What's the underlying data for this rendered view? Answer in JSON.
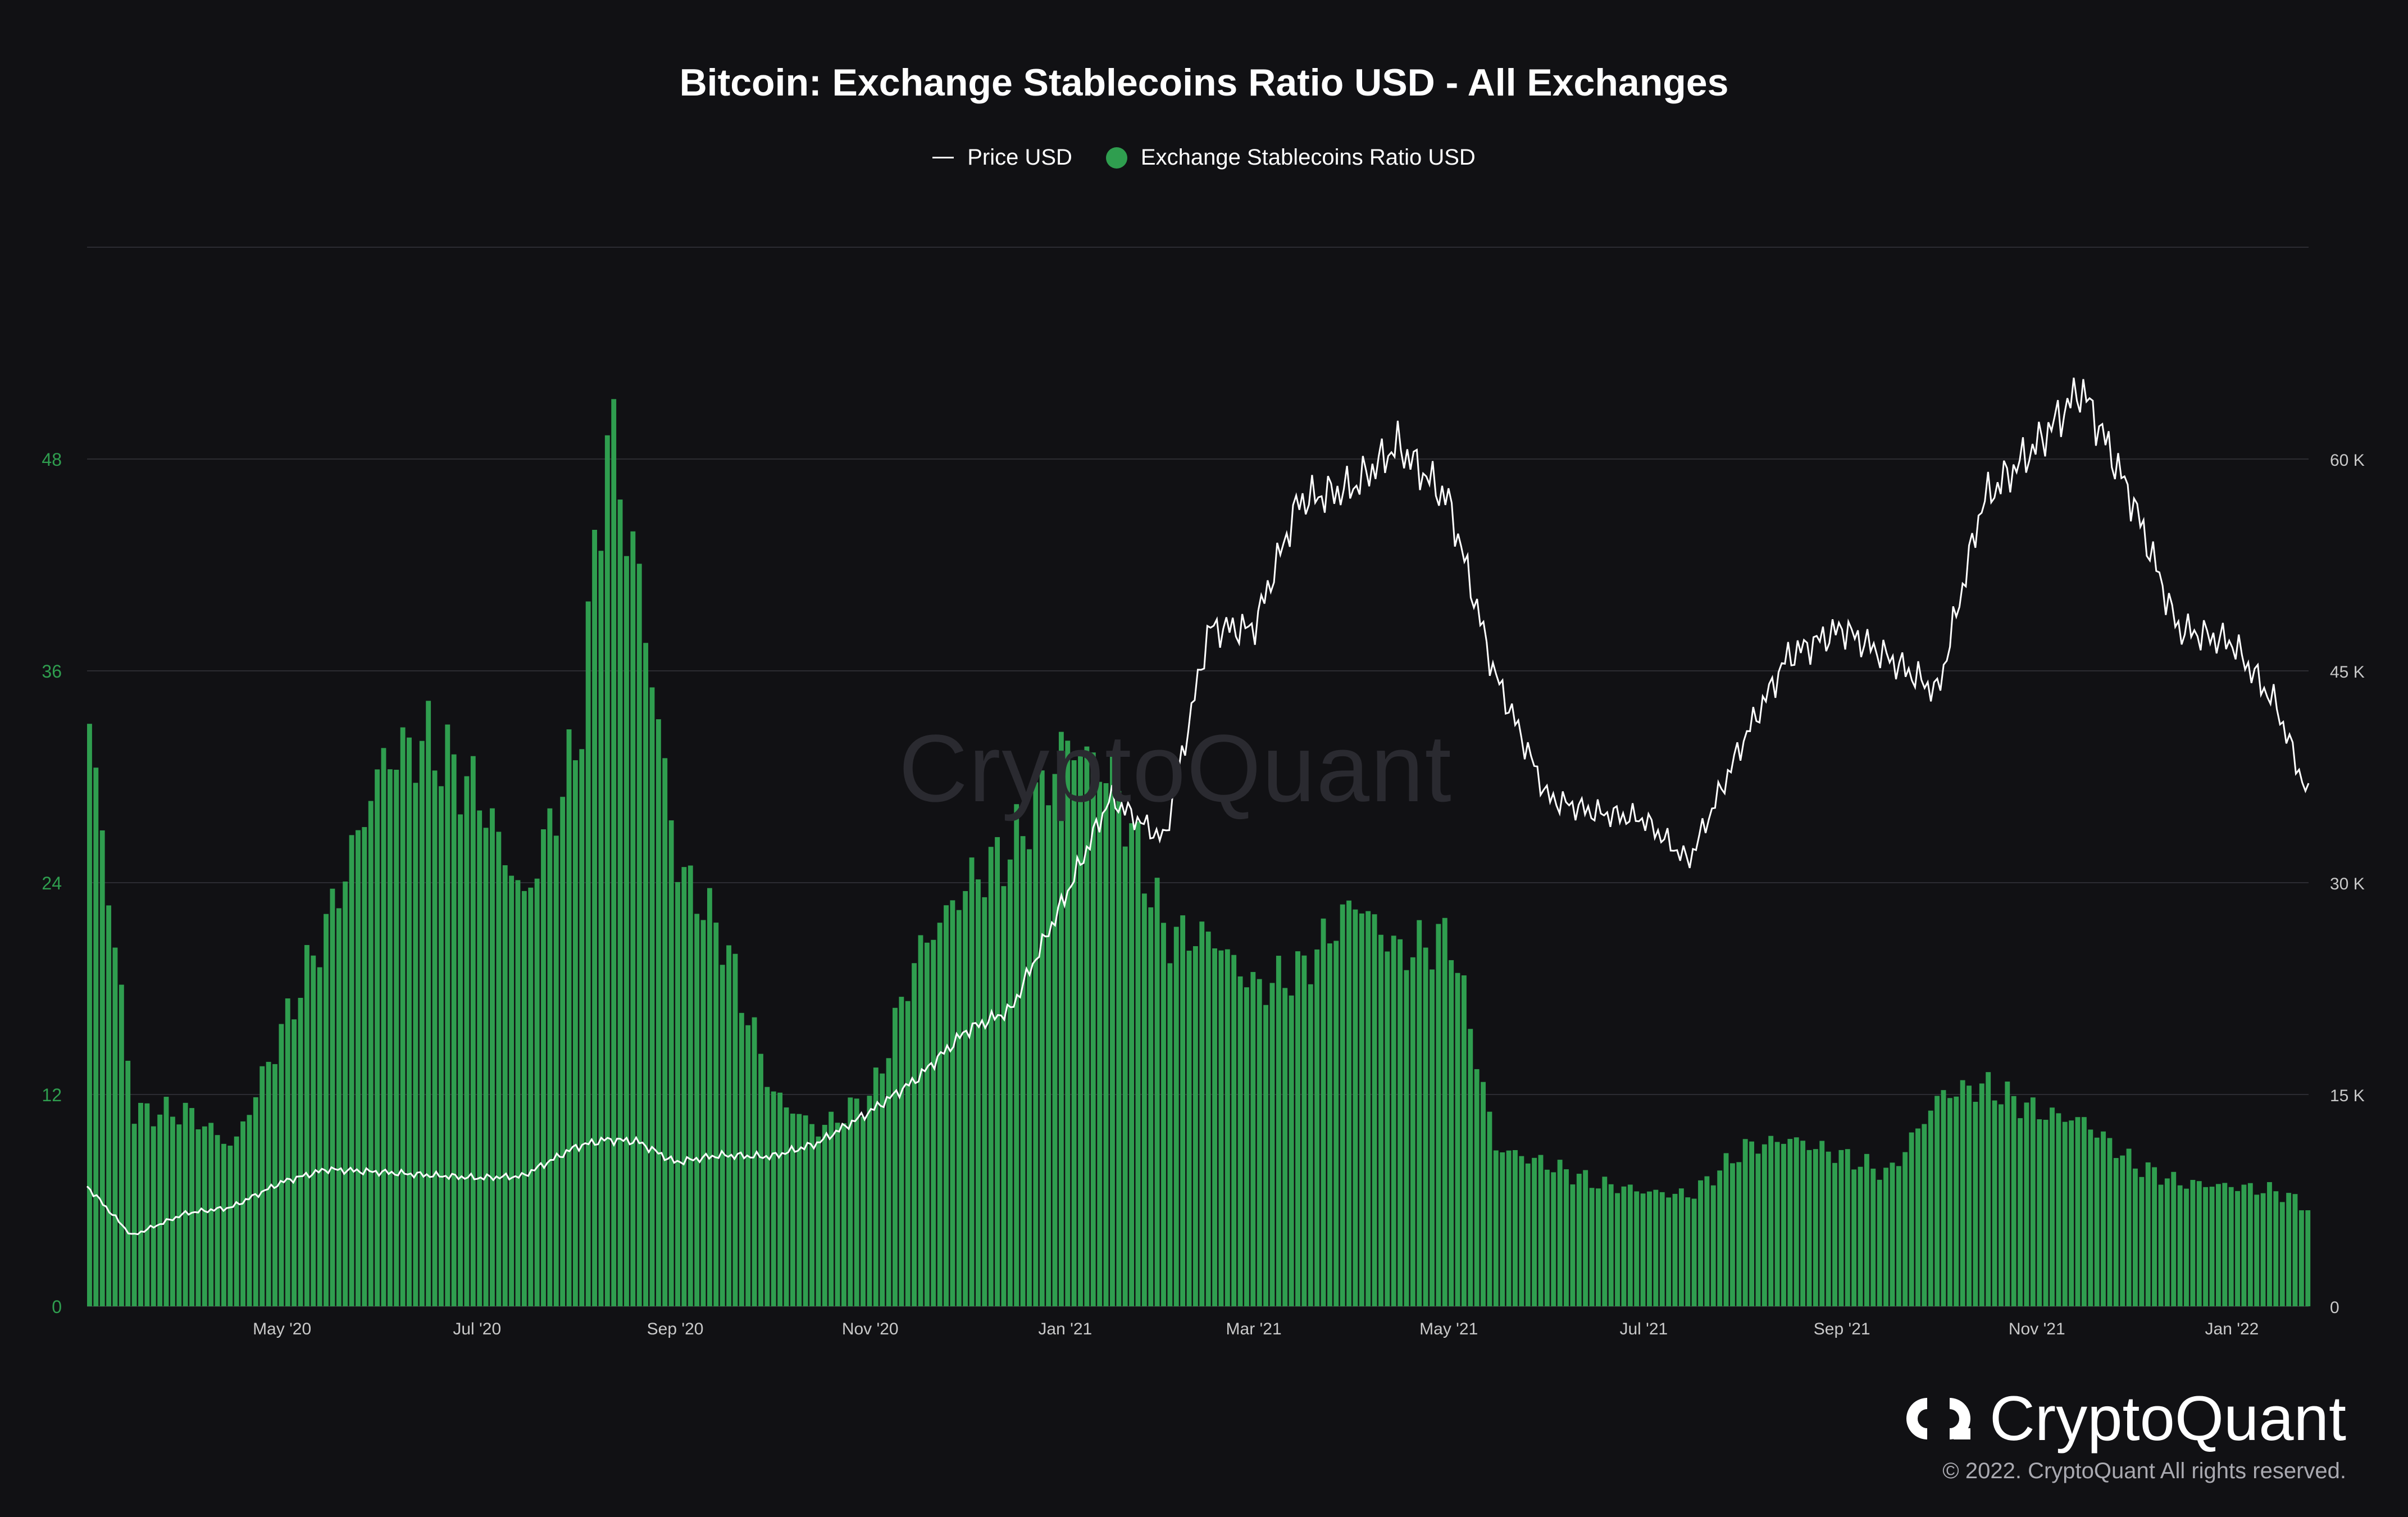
{
  "chart_data": {
    "type": "bar",
    "title": "Bitcoin: Exchange Stablecoins Ratio USD - All Exchanges",
    "legend": [
      "Price USD",
      "Exchange Stablecoins Ratio USD"
    ],
    "legend_placement": "top-center",
    "x_tick_labels": [
      "May '20",
      "Jul '20",
      "Sep '20",
      "Nov '20",
      "Jan '21",
      "Mar '21",
      "May '21",
      "Jul '21",
      "Sep '21",
      "Nov '21",
      "Jan '22"
    ],
    "y_left_ticks": [
      "0",
      "12",
      "24",
      "36",
      "48"
    ],
    "y_right_ticks": [
      "0",
      "15 K",
      "30 K",
      "45 K",
      "60 K"
    ],
    "ylim_left": [
      0,
      60
    ],
    "ylim_right": [
      0,
      75000
    ],
    "grid": true,
    "colors": {
      "bars": "#2f9e4f",
      "price_line": "#ffffff",
      "grid": "#2c2c32",
      "left_axis": "#2f9e4f",
      "right_axis": "#c9c9c9",
      "x_axis": "#c9c9c9"
    },
    "x": [
      "2020-03-01",
      "2020-03-15",
      "2020-04-01",
      "2020-04-15",
      "2020-05-01",
      "2020-05-15",
      "2020-06-01",
      "2020-06-15",
      "2020-07-01",
      "2020-07-15",
      "2020-08-01",
      "2020-08-10",
      "2020-08-20",
      "2020-09-01",
      "2020-09-15",
      "2020-10-01",
      "2020-10-15",
      "2020-11-01",
      "2020-11-15",
      "2020-12-01",
      "2020-12-15",
      "2021-01-01",
      "2021-01-15",
      "2021-02-01",
      "2021-02-15",
      "2021-03-01",
      "2021-03-15",
      "2021-04-01",
      "2021-04-15",
      "2021-05-01",
      "2021-05-15",
      "2021-06-01",
      "2021-06-15",
      "2021-07-01",
      "2021-07-15",
      "2021-08-01",
      "2021-08-15",
      "2021-09-01",
      "2021-09-15",
      "2021-10-01",
      "2021-10-15",
      "2021-11-01",
      "2021-11-15",
      "2021-12-01",
      "2021-12-15",
      "2022-01-01",
      "2022-01-15",
      "2022-01-25"
    ],
    "series": [
      {
        "name": "Exchange Stablecoins Ratio USD",
        "axis": "left",
        "values": [
          33.0,
          11.0,
          11.0,
          9.0,
          16.0,
          22.0,
          31.0,
          32.0,
          29.0,
          23.0,
          32.0,
          50.0,
          41.0,
          25.0,
          21.0,
          12.0,
          10.0,
          12.0,
          20.0,
          24.0,
          26.0,
          32.0,
          30.0,
          21.0,
          21.0,
          18.0,
          19.0,
          23.0,
          20.0,
          21.0,
          9.0,
          8.0,
          7.0,
          6.5,
          6.3,
          9.0,
          9.5,
          8.5,
          7.5,
          12.0,
          12.5,
          11.0,
          10.5,
          8.0,
          7.0,
          6.8,
          6.5,
          5.5
        ]
      },
      {
        "name": "Price USD",
        "axis": "right",
        "values": [
          8500,
          5000,
          6600,
          7000,
          8800,
          9700,
          9500,
          9300,
          9100,
          9200,
          11300,
          11800,
          11700,
          10200,
          10700,
          10600,
          11500,
          13800,
          16000,
          19500,
          21000,
          29000,
          36000,
          33000,
          48000,
          48000,
          57000,
          58000,
          61000,
          57000,
          45000,
          36000,
          35000,
          34500,
          31500,
          40000,
          46000,
          48000,
          46000,
          43500,
          57000,
          61000,
          65000,
          57000,
          48000,
          47000,
          42500,
          36000
        ]
      }
    ]
  },
  "watermark": "CryptoQuant",
  "brand": "CryptoQuant",
  "copyright": "© 2022. CryptoQuant All rights reserved."
}
